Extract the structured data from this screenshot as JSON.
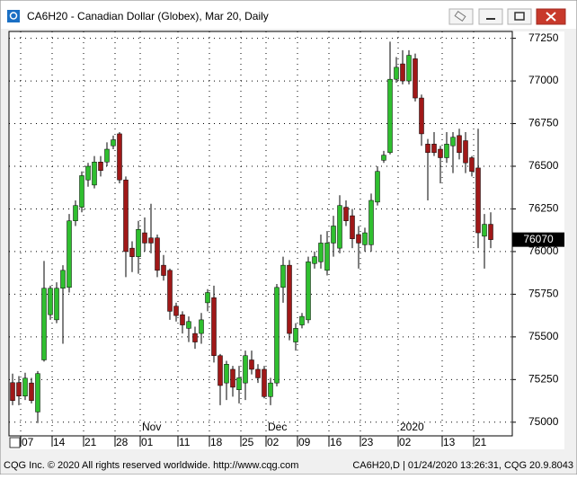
{
  "window": {
    "title": "CA6H20 - Canadian Dollar (Globex), Mar 20, Daily"
  },
  "chart_data": {
    "type": "candlestick",
    "categories": [
      null,
      null,
      null,
      "07",
      null,
      null,
      null,
      null,
      "14",
      null,
      null,
      null,
      null,
      "21",
      null,
      null,
      null,
      null,
      "28",
      null,
      null,
      null,
      "01",
      null,
      null,
      null,
      null,
      null,
      "11",
      null,
      null,
      null,
      null,
      "18",
      null,
      null,
      null,
      null,
      "25",
      null,
      null,
      null,
      "02",
      null,
      null,
      null,
      null,
      "09",
      null,
      null,
      null,
      null,
      "16",
      null,
      null,
      null,
      null,
      "23",
      null,
      null,
      null,
      null,
      null,
      "02",
      null,
      null,
      null,
      null,
      null,
      null,
      "13",
      null,
      null,
      null,
      null,
      "21",
      null
    ],
    "category_groups": [
      null,
      null,
      null,
      null,
      null,
      null,
      null,
      null,
      null,
      null,
      null,
      null,
      null,
      null,
      null,
      null,
      null,
      null,
      null,
      null,
      null,
      null,
      "Nov",
      null,
      null,
      null,
      null,
      null,
      null,
      null,
      null,
      null,
      null,
      null,
      null,
      null,
      null,
      null,
      null,
      null,
      null,
      null,
      "Dec",
      null,
      null,
      null,
      null,
      null,
      null,
      null,
      null,
      null,
      null,
      null,
      null,
      null,
      null,
      null,
      null,
      null,
      null,
      null,
      null,
      "2020",
      null,
      null,
      null,
      null,
      null,
      null,
      null,
      null,
      null,
      null,
      null,
      null,
      null
    ],
    "open": [
      75232,
      75232,
      75153,
      75230,
      75060,
      75365,
      75630,
      75600,
      75785,
      75790,
      76180,
      76260,
      76420,
      76390,
      76525,
      76525,
      76620,
      76690,
      76420,
      76020,
      75970,
      76110,
      76080,
      76080,
      75920,
      75890,
      75680,
      75630,
      75550,
      75520,
      75520,
      75700,
      75730,
      75390,
      75230,
      75310,
      75190,
      75230,
      75365,
      75310,
      75310,
      75150,
      75230,
      75790,
      75920,
      75470,
      75570,
      75600,
      75930,
      75940,
      75890,
      76050,
      76020,
      76260,
      76210,
      76100,
      76040,
      76040,
      76290,
      76535,
      76580,
      77010,
      77100,
      77000,
      77130,
      76900,
      76630,
      76630,
      76600,
      76550,
      76620,
      76680,
      76650,
      76550,
      76490,
      76090,
      76160
    ],
    "high": [
      75285,
      75270,
      75290,
      75260,
      75300,
      75945,
      75800,
      75820,
      75920,
      76220,
      76300,
      76470,
      76520,
      76560,
      76560,
      76640,
      76680,
      76700,
      76440,
      76060,
      76180,
      76200,
      76280,
      76100,
      75980,
      75900,
      75700,
      75650,
      75620,
      75560,
      75640,
      75780,
      75800,
      75400,
      75360,
      75330,
      75330,
      75420,
      75420,
      75340,
      75330,
      75260,
      75810,
      75970,
      75950,
      75580,
      75640,
      75970,
      76000,
      76100,
      76120,
      76210,
      76330,
      76300,
      76250,
      76150,
      76140,
      76340,
      76500,
      76590,
      77230,
      77140,
      77180,
      77180,
      77160,
      76920,
      76660,
      76700,
      76620,
      76700,
      76700,
      76720,
      76700,
      76560,
      76720,
      76220,
      76230
    ],
    "low": [
      75100,
      75100,
      75130,
      75110,
      74995,
      75355,
      75600,
      75580,
      75460,
      75760,
      76150,
      76230,
      76380,
      76370,
      76440,
      76500,
      76600,
      76400,
      75850,
      75880,
      75870,
      76000,
      75990,
      75850,
      75830,
      75600,
      75590,
      75520,
      75470,
      75430,
      75460,
      75650,
      75350,
      75100,
      75130,
      75150,
      75110,
      75130,
      75280,
      75230,
      75140,
      75100,
      75210,
      75700,
      75480,
      75420,
      75550,
      75580,
      75900,
      75900,
      75860,
      75970,
      75990,
      76150,
      76020,
      75900,
      76000,
      76000,
      76270,
      76520,
      76570,
      76990,
      76980,
      76980,
      76880,
      76620,
      76300,
      76560,
      76400,
      76520,
      76460,
      76540,
      76460,
      76440,
      76020,
      75900,
      76020
    ],
    "close": [
      75127,
      75153,
      75258,
      75127,
      75285,
      75785,
      75785,
      75785,
      75890,
      76180,
      76270,
      76445,
      76500,
      76525,
      76475,
      76600,
      76655,
      76420,
      76000,
      75970,
      76130,
      76050,
      76050,
      75890,
      75860,
      75650,
      75625,
      75570,
      75590,
      75470,
      75600,
      75760,
      75390,
      75215,
      75340,
      75205,
      75260,
      75390,
      75310,
      75260,
      75150,
      75230,
      75790,
      75920,
      75520,
      75550,
      75620,
      75940,
      75970,
      76050,
      76050,
      76150,
      76270,
      76180,
      76075,
      76050,
      76110,
      76300,
      76470,
      76565,
      77010,
      77080,
      77000,
      77150,
      76900,
      76690,
      76580,
      76580,
      76550,
      76630,
      76670,
      76580,
      76520,
      76470,
      76110,
      76160,
      76070
    ],
    "up_color": "#2fbf2f",
    "down_color": "#a01818",
    "ylim": [
      74920,
      77290
    ],
    "yticks": [
      75000,
      75250,
      75500,
      75750,
      76000,
      76250,
      76500,
      76750,
      77000,
      77250
    ],
    "grid": true,
    "last_price": 76070
  },
  "footer": {
    "left": "CQG Inc. © 2020 All rights reserved worldwide. http://www.cqg.com",
    "right": "CA6H20,D | 01/24/2020 13:26:31, CQG 20.9.8043"
  }
}
